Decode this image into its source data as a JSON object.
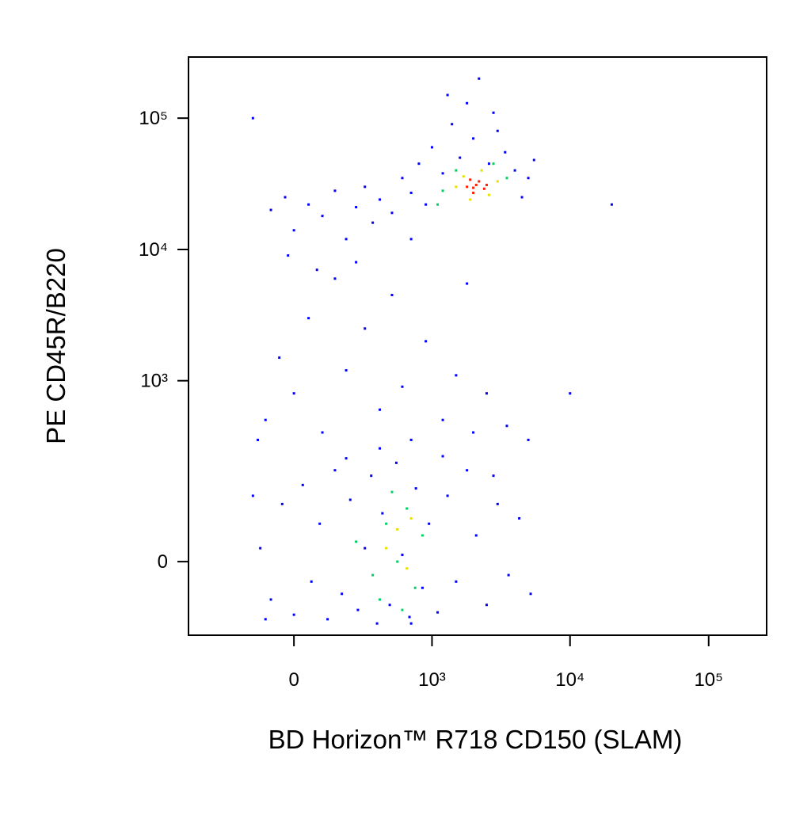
{
  "chart_data": {
    "type": "scatter",
    "xlabel": "BD Horizon™ R718 CD150 (SLAM)",
    "ylabel": "PE CD45R/B220",
    "xscale": "biexponential",
    "yscale": "biexponential",
    "xlim": [
      -570,
      262000
    ],
    "ylim": [
      -141,
      292000
    ],
    "xticks": [
      0,
      {
        "value": 1000,
        "label": "10³"
      },
      {
        "value": 10000,
        "label": "10⁴"
      },
      {
        "value": 100000,
        "label": "10⁵"
      }
    ],
    "yticks": [
      0,
      {
        "value": 1000,
        "label": "10³"
      },
      {
        "value": 10000,
        "label": "10⁴"
      },
      {
        "value": 100000,
        "label": "10⁵"
      }
    ],
    "grid": false,
    "series": [
      {
        "color": "#0000ff",
        "x": [
          -120,
          -80,
          -40,
          0,
          30,
          60,
          90,
          120,
          150,
          180,
          220,
          260,
          300,
          340,
          380,
          420,
          480,
          540,
          600,
          680,
          760,
          850,
          950,
          1100,
          1300,
          1500,
          1800,
          2100,
          2500,
          3000,
          3600,
          4300,
          5200,
          -150,
          -100,
          200,
          700,
          1200,
          2800,
          400,
          -100,
          -50,
          0,
          50,
          100,
          150,
          200,
          300,
          400,
          500,
          600,
          700,
          900,
          1200,
          1500,
          2000,
          2500,
          3500,
          5000,
          -20,
          80,
          250,
          1800,
          10000,
          -130,
          -80,
          -30,
          0,
          50,
          100,
          150,
          200,
          250,
          300,
          350,
          400,
          500,
          600,
          700,
          800,
          900,
          1000,
          1200,
          1400,
          1600,
          1800,
          2000,
          2200,
          2600,
          3000,
          3400,
          4000,
          4500,
          5000,
          5500,
          1300,
          2800,
          -150,
          20000,
          700
        ],
        "y": [
          20,
          -60,
          100,
          -90,
          150,
          -30,
          60,
          -100,
          200,
          -50,
          110,
          -80,
          20,
          180,
          -110,
          80,
          -70,
          230,
          10,
          -95,
          140,
          -40,
          60,
          -85,
          120,
          -30,
          200,
          40,
          -70,
          100,
          -20,
          70,
          -50,
          120,
          -100,
          250,
          -110,
          260,
          180,
          300,
          500,
          1500,
          800,
          3000,
          400,
          6000,
          1200,
          2500,
          600,
          4500,
          900,
          350,
          2000,
          500,
          1100,
          400,
          800,
          450,
          350,
          9000,
          7000,
          8000,
          5500,
          800,
          350,
          20000,
          25000,
          14000,
          22000,
          18000,
          28000,
          12000,
          21000,
          30000,
          16000,
          24000,
          19000,
          35000,
          27000,
          45000,
          22000,
          60000,
          38000,
          90000,
          50000,
          130000,
          70000,
          200000,
          45000,
          80000,
          55000,
          40000,
          25000,
          35000,
          48000,
          150000,
          110000,
          100000,
          22000,
          12000
        ]
      },
      {
        "color": "#00d060",
        "x": [
          250,
          350,
          450,
          550,
          650,
          750,
          500,
          400,
          850,
          600,
          1200,
          1500,
          2800,
          3500,
          1100
        ],
        "y": [
          30,
          -20,
          60,
          0,
          90,
          -40,
          130,
          -60,
          40,
          -80,
          28000,
          40000,
          45000,
          35000,
          22000
        ]
      },
      {
        "color": "#e8e000",
        "x": [
          450,
          550,
          650,
          700,
          1500,
          1700,
          2600,
          3000,
          1900,
          2300
        ],
        "y": [
          20,
          50,
          -10,
          70,
          30000,
          36000,
          26000,
          33000,
          24000,
          40000
        ]
      },
      {
        "color": "#ff2000",
        "x": [
          1800,
          2000,
          2200,
          2400,
          2100,
          1900,
          2500,
          2000
        ],
        "y": [
          30000,
          27000,
          33000,
          29000,
          31000,
          34000,
          31000,
          29500
        ]
      }
    ]
  }
}
